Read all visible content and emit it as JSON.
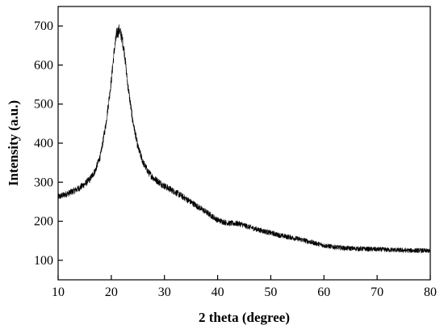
{
  "chart_data": {
    "type": "line",
    "title": "",
    "xlabel": "2 theta (degree)",
    "ylabel": "Intensity (a.u.)",
    "xlim": [
      10,
      80
    ],
    "ylim": [
      50,
      750
    ],
    "x_ticks": [
      10,
      20,
      30,
      40,
      50,
      60,
      70,
      80
    ],
    "y_ticks": [
      100,
      200,
      300,
      400,
      500,
      600,
      700
    ],
    "grid": false,
    "legend": "none",
    "series": [
      {
        "color": "#000000",
        "noise": "high-frequency",
        "points": [
          [
            10,
            262
          ],
          [
            11,
            267
          ],
          [
            12,
            272
          ],
          [
            13,
            278
          ],
          [
            14,
            285
          ],
          [
            15,
            295
          ],
          [
            16,
            308
          ],
          [
            17,
            330
          ],
          [
            18,
            370
          ],
          [
            19,
            450
          ],
          [
            20,
            560
          ],
          [
            20.5,
            630
          ],
          [
            21,
            680
          ],
          [
            21.5,
            690
          ],
          [
            22,
            670
          ],
          [
            22.5,
            630
          ],
          [
            23,
            560
          ],
          [
            24,
            460
          ],
          [
            25,
            390
          ],
          [
            26,
            350
          ],
          [
            27,
            325
          ],
          [
            28,
            310
          ],
          [
            29,
            300
          ],
          [
            30,
            290
          ],
          [
            32,
            275
          ],
          [
            34,
            258
          ],
          [
            36,
            240
          ],
          [
            38,
            222
          ],
          [
            40,
            203
          ],
          [
            42,
            195
          ],
          [
            44,
            194
          ],
          [
            46,
            185
          ],
          [
            48,
            177
          ],
          [
            50,
            170
          ],
          [
            52,
            163
          ],
          [
            54,
            158
          ],
          [
            56,
            152
          ],
          [
            58,
            145
          ],
          [
            60,
            138
          ],
          [
            62,
            134
          ],
          [
            64,
            131
          ],
          [
            66,
            130
          ],
          [
            68,
            129
          ],
          [
            70,
            128
          ],
          [
            72,
            127
          ],
          [
            74,
            126
          ],
          [
            76,
            125
          ],
          [
            78,
            125
          ],
          [
            80,
            124
          ]
        ]
      }
    ]
  }
}
